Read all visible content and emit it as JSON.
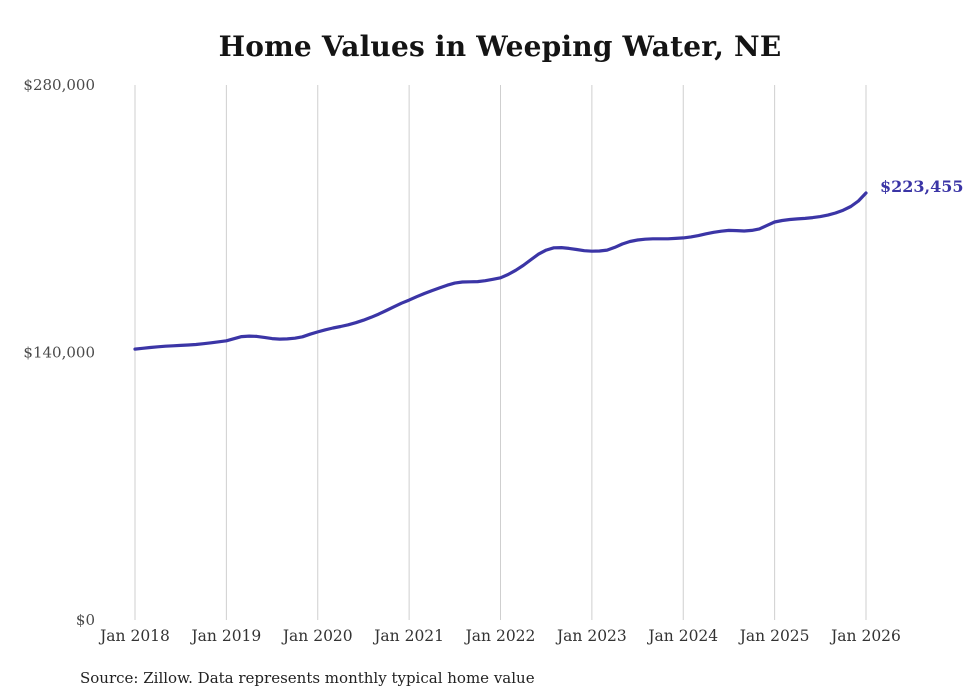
{
  "title": "Home Values in Weeping Water, NE",
  "source_note": "Source: Zillow. Data represents monthly typical home value",
  "colors": {
    "line": "#3b35a6",
    "annotation": "#3b35a6",
    "grid": "#cfcfcf",
    "y_tick_text": "#4a4a4a",
    "x_tick_text": "#333333",
    "title_text": "#141414"
  },
  "chart_data": {
    "type": "line",
    "title": "Home Values in Weeping Water, NE",
    "frequency": "monthly",
    "x_start_label": "Jan 2018",
    "x_end_label": "Jan 2026",
    "x_tick_labels": [
      "Jan 2018",
      "Jan 2019",
      "Jan 2020",
      "Jan 2021",
      "Jan 2022",
      "Jan 2023",
      "Jan 2024",
      "Jan 2025",
      "Jan 2026"
    ],
    "y_ticks": [
      0,
      140000,
      280000
    ],
    "y_tick_labels": [
      "$0",
      "$140,000",
      "$280,000"
    ],
    "ylim": [
      0,
      280000
    ],
    "grid": "vertical-yearly",
    "legend": "none",
    "end_label": "$223,455",
    "end_value": 223455,
    "series": [
      {
        "name": "Typical home value",
        "values": [
          141800,
          142200,
          142600,
          143000,
          143300,
          143500,
          143700,
          143900,
          144200,
          144600,
          145100,
          145600,
          146100,
          147200,
          148300,
          148600,
          148400,
          147900,
          147300,
          147000,
          147100,
          147500,
          148200,
          149600,
          150800,
          151900,
          152800,
          153600,
          154500,
          155600,
          156900,
          158400,
          160100,
          162000,
          163900,
          165800,
          167400,
          169200,
          170900,
          172400,
          173800,
          175200,
          176300,
          176900,
          177000,
          177100,
          177600,
          178300,
          179100,
          180800,
          183000,
          185600,
          188600,
          191500,
          193600,
          194800,
          194900,
          194500,
          193900,
          193300,
          193000,
          193100,
          193600,
          195000,
          196800,
          198100,
          198900,
          199300,
          199500,
          199500,
          199500,
          199700,
          200000,
          200500,
          201200,
          202100,
          202900,
          203500,
          203900,
          203800,
          203600,
          203900,
          204700,
          206500,
          208300,
          209100,
          209600,
          209900,
          210200,
          210600,
          211100,
          211900,
          213000,
          214500,
          216400,
          219300,
          223455
        ]
      }
    ]
  }
}
